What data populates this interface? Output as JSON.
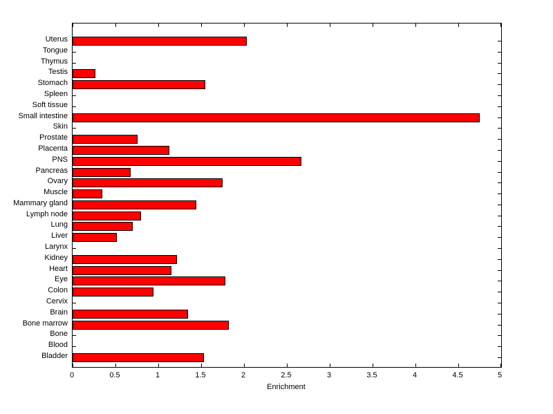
{
  "chart_data": {
    "type": "bar",
    "orientation": "horizontal",
    "title": "",
    "xlabel": "Enrichment",
    "ylabel": "",
    "xlim": [
      0,
      5
    ],
    "xticks": [
      0,
      0.5,
      1,
      1.5,
      2,
      2.5,
      3,
      3.5,
      4,
      4.5,
      5
    ],
    "xtick_labels": [
      "0",
      "0.5",
      "1",
      "1.5",
      "2",
      "2.5",
      "3",
      "3.5",
      "4",
      "4.5",
      "5"
    ],
    "categories": [
      "Uterus",
      "Tongue",
      "Thymus",
      "Testis",
      "Stomach",
      "Spleen",
      "Soft tissue",
      "Small intestine",
      "Skin",
      "Prostate",
      "Placenta",
      "PNS",
      "Pancreas",
      "Ovary",
      "Muscle",
      "Mammary gland",
      "Lymph node",
      "Lung",
      "Liver",
      "Larynx",
      "Kidney",
      "Heart",
      "Eye",
      "Colon",
      "Cervix",
      "Brain",
      "Bone marrow",
      "Bone",
      "Blood",
      "Bladder"
    ],
    "values": [
      2.03,
      0,
      0,
      0.27,
      1.55,
      0,
      0,
      4.75,
      0,
      0.76,
      1.13,
      2.67,
      0.68,
      1.75,
      0.35,
      1.44,
      0.8,
      0.7,
      0.52,
      0,
      1.22,
      1.15,
      1.78,
      0.94,
      0,
      1.35,
      1.82,
      0,
      0,
      1.53
    ],
    "bar_color": "#ff0000",
    "bar_edge_color": "#000000",
    "grid": false,
    "legend": null
  }
}
